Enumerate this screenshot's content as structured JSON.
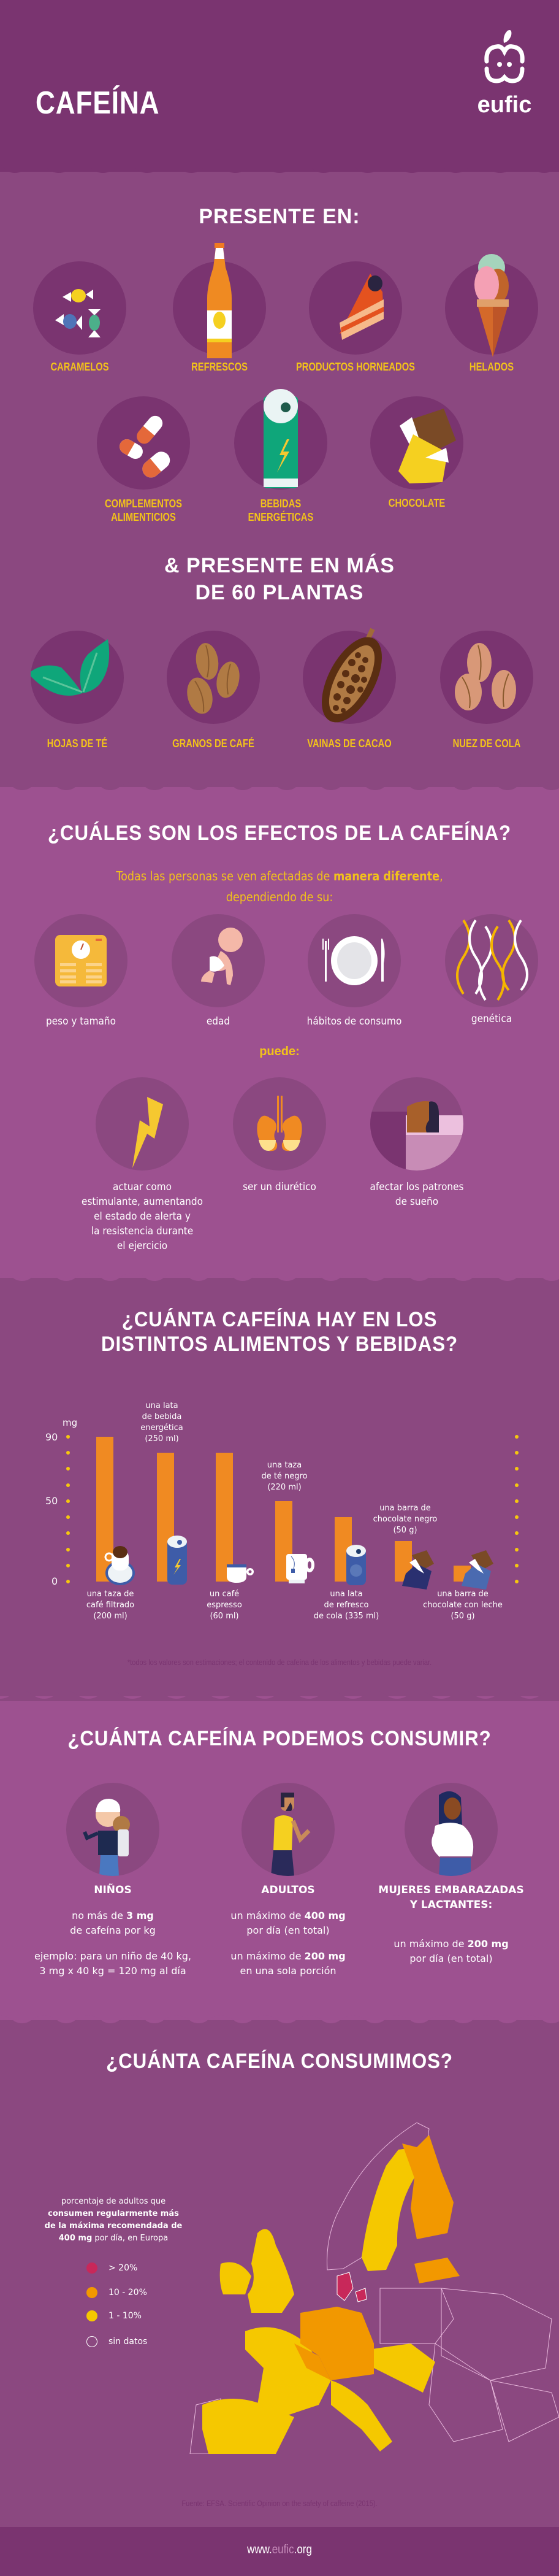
{
  "header": {
    "title": "CAFEÍNA",
    "logo_text": "eufic"
  },
  "present_in": {
    "title": "PRESENTE EN:",
    "items": [
      {
        "label": "CARAMELOS",
        "icon": "candy-icon"
      },
      {
        "label": "REFRESCOS",
        "icon": "soda-bottle-icon"
      },
      {
        "label": "PRODUCTOS HORNEADOS",
        "icon": "cake-slice-icon"
      },
      {
        "label": "HELADOS",
        "icon": "ice-cream-icon"
      },
      {
        "label_line1": "COMPLEMENTOS",
        "label_line2": "ALIMENTICIOS",
        "icon": "pills-icon"
      },
      {
        "label_line1": "BEBIDAS",
        "label_line2": "ENERGÉTICAS",
        "icon": "energy-can-icon"
      },
      {
        "label": "CHOCOLATE",
        "icon": "chocolate-bar-icon"
      }
    ]
  },
  "plants": {
    "title_line1": "& PRESENTE EN MÁS",
    "title_line2": "DE 60 PLANTAS",
    "items": [
      {
        "label": "HOJAS DE TÉ",
        "icon": "tea-leaves-icon"
      },
      {
        "label": "GRANOS DE CAFÉ",
        "icon": "coffee-beans-icon"
      },
      {
        "label": "VAINAS DE CACAO",
        "icon": "cacao-pod-icon"
      },
      {
        "label": "NUEZ DE COLA",
        "icon": "kola-nut-icon"
      }
    ]
  },
  "effects": {
    "title": "¿CUÁLES SON LOS EFECTOS DE LA CAFEÍNA?",
    "subtitle_pre": "Todas las personas se ven afectadas de ",
    "subtitle_bold": "manera diferente",
    "subtitle_post": ",",
    "subtitle_line2": "dependiendo de su:",
    "factors": [
      {
        "label": "peso y tamaño",
        "icon": "scale-icon"
      },
      {
        "label": "edad",
        "icon": "baby-icon"
      },
      {
        "label": "hábitos de consumo",
        "icon": "plate-cutlery-icon"
      },
      {
        "label": "genética",
        "icon": "dna-icon"
      }
    ],
    "can_label": "puede:",
    "outcomes": [
      {
        "lines": [
          "actuar como",
          "estimulante, aumentando",
          "el estado de alerta y",
          "la resistencia durante",
          "el ejercicio"
        ],
        "icon": "lightning-icon"
      },
      {
        "lines": [
          "ser un diurético"
        ],
        "icon": "kidneys-icon"
      },
      {
        "lines": [
          "afectar los patrones",
          "de sueño"
        ],
        "icon": "sleeping-person-icon"
      }
    ]
  },
  "content": {
    "title_line1": "¿CUÁNTA CAFEÍNA HAY EN LOS",
    "title_line2": "DISTINTOS ALIMENTOS Y BEBIDAS?",
    "footnote": "*todos los valores son estimaciones; el contenido de cafeína de los alimentos y bebidas puede variar."
  },
  "chart_data": {
    "type": "bar",
    "title": "¿CUÁNTA CAFEÍNA HAY EN LOS DISTINTOS ALIMENTOS Y BEBIDAS?",
    "ylabel": "mg",
    "ylim": [
      0,
      90
    ],
    "yticks": [
      0,
      50,
      90
    ],
    "categories": [
      "una taza de café filtrado (200 ml)",
      "una lata de bebida energética (250 ml)",
      "un café espresso (60 ml)",
      "una taza de té negro (220 ml)",
      "una lata de refresco de cola (335 ml)",
      "una barra de chocolate negro (50 g)",
      "una barra de chocolate con leche (50 g)"
    ],
    "values": [
      90,
      80,
      80,
      50,
      40,
      25,
      10
    ],
    "bar_color": "#f08a22",
    "labels": [
      {
        "lines": [
          "una taza de",
          "café filtrado",
          "(200 ml)"
        ],
        "pos": "below"
      },
      {
        "lines": [
          "una lata",
          "de bebida",
          "energética",
          "(250 ml)"
        ],
        "pos": "above"
      },
      {
        "lines": [
          "un café",
          "espresso",
          "(60 ml)"
        ],
        "pos": "below"
      },
      {
        "lines": [
          "una taza",
          "de té negro",
          "(220 ml)"
        ],
        "pos": "above"
      },
      {
        "lines": [
          "una lata",
          "de refresco",
          "de cola (335 ml)"
        ],
        "pos": "below"
      },
      {
        "lines": [
          "una barra de",
          "chocolate negro",
          "(50 g)"
        ],
        "pos": "above"
      },
      {
        "lines": [
          "una barra de",
          "chocolate con leche",
          "(50 g)"
        ],
        "pos": "below"
      }
    ]
  },
  "intake": {
    "title": "¿CUÁNTA CAFEÍNA PODEMOS CONSUMIR?",
    "groups": [
      {
        "title": "NIÑOS",
        "icon": "child-icon",
        "p1_pre": "no más de ",
        "p1_bold": "3 mg",
        "p1_line2": "de cafeína por kg",
        "p2_line1": "ejemplo: para un niño de 40 kg,",
        "p2_line2": "3 mg x 40 kg = 120 mg al día"
      },
      {
        "title": "ADULTOS",
        "icon": "adult-man-icon",
        "p1_pre": "un máximo de ",
        "p1_bold": "400 mg",
        "p1_line2": "por día (en total)",
        "p2_pre": "un máximo de ",
        "p2_bold": "200 mg",
        "p2_line2": "en una sola porción"
      },
      {
        "title_line1": "MUJERES EMBARAZADAS",
        "title_line2": "Y LACTANTES:",
        "icon": "pregnant-woman-icon",
        "p1_pre": "un máximo de ",
        "p1_bold": "200 mg",
        "p1_line2": "por día (en total)"
      }
    ]
  },
  "consumption": {
    "title": "¿CUÁNTA CAFEÍNA CONSUMIMOS?",
    "legend_title_l1": "porcentaje de adultos que",
    "legend_title_l2": "consumen regularmente más",
    "legend_title_l3": "de la máxima recomendada de",
    "legend_title_bold": "400 mg",
    "legend_title_l4": " por día, en Europa",
    "legend": [
      {
        "label": "> 20%",
        "color": "#c8285a"
      },
      {
        "label": "10 - 20%",
        "color": "#f29800"
      },
      {
        "label": "1 - 10%",
        "color": "#f5c800"
      },
      {
        "label": "sin datos",
        "color": "none"
      }
    ],
    "source": "Fuente: EFSA. Scientific Opinion on the safety of caffeine (2015)."
  },
  "footer": {
    "url_pre": "www.",
    "url_mid": "eufic",
    "url_post": ".org"
  },
  "colors": {
    "dark": "#7a3470",
    "mid": "#8b4880",
    "light": "#9d5190",
    "yellow": "#f2c21a",
    "orange": "#f08a22"
  }
}
